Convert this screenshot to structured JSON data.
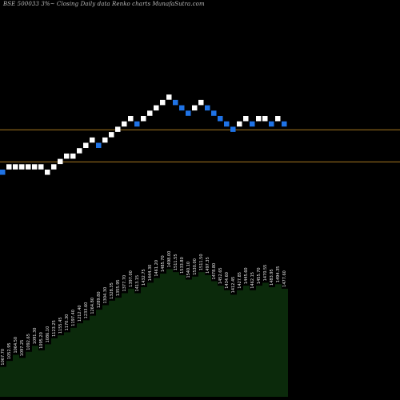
{
  "header": {
    "title": "BSE 500033 3%~  Closing Daily data  Renko  charts MunafaSutra.com"
  },
  "chart_data": [
    {
      "type": "renko",
      "title": "BSE 500033 3%~  Closing Daily data  Renko  charts MunafaSutra.com",
      "box_size_percent": 3,
      "brick_direction": [
        "down",
        "up",
        "up",
        "up",
        "up",
        "up",
        "up",
        "up",
        "up",
        "up",
        "up",
        "up",
        "up",
        "up",
        "up",
        "down",
        "up",
        "up",
        "up",
        "up",
        "up",
        "down",
        "up",
        "up",
        "up",
        "up",
        "up",
        "down",
        "down",
        "down",
        "up",
        "up",
        "down",
        "down",
        "down",
        "down",
        "down",
        "up",
        "up",
        "down",
        "up",
        "up",
        "down",
        "up",
        "down"
      ],
      "brick_level": [
        0,
        1,
        1,
        1,
        1,
        1,
        1,
        0,
        1,
        2,
        3,
        3,
        4,
        5,
        6,
        5,
        6,
        7,
        8,
        9,
        10,
        9,
        10,
        11,
        12,
        13,
        14,
        13,
        12,
        11,
        12,
        13,
        12,
        11,
        10,
        9,
        8,
        9,
        10,
        9,
        10,
        10,
        9,
        10,
        9
      ],
      "colors": {
        "up": "#ffffff",
        "down": "#1f73e6",
        "background": "#000000",
        "horizontal_lines": "#a87820",
        "volume_fill": "#0b2a0b"
      },
      "horizontal_lines_at_level": [
        7.9,
        1.9
      ],
      "grid": false,
      "legend": "none"
    },
    {
      "type": "area",
      "series_label": "volume/labels beneath renko",
      "values": [
        1.0,
        1.8,
        2.6,
        2.2,
        3.0,
        3.8,
        3.2,
        4.0,
        4.8,
        5.2,
        5.6,
        6.2,
        6.8,
        7.2,
        7.8,
        8.6,
        9.2,
        9.8,
        10.2,
        10.8,
        11.4,
        10.8,
        11.6,
        12.2,
        12.8,
        13.4,
        14.0,
        13.6,
        13.2,
        12.6,
        13.0,
        13.6,
        13.2,
        12.4,
        11.8,
        11.2,
        10.6,
        11.2,
        11.8,
        11.2,
        11.8,
        12.2,
        11.6,
        12.0,
        11.4
      ],
      "point_labels": [
        "1067.70",
        "1052.95",
        "1064.50",
        "1097.25",
        "1092.65",
        "1091.30",
        "1095.20",
        "1086.10",
        "1123.25",
        "1155.45",
        "1170.30",
        "1197.40",
        "1212.40",
        "1233.60",
        "1264.80",
        "1289.80",
        "1304.30",
        "1328.35",
        "1355.95",
        "1377.70",
        "1397.00",
        "1413.15",
        "1432.75",
        "1444.30",
        "1461.20",
        "1485.70",
        "1498.00",
        "1511.55",
        "1533.80",
        "1540.10",
        "1530.00",
        "1511.50",
        "1497.35",
        "1478.80",
        "1452.65",
        "1434.60",
        "1412.45",
        "1427.85",
        "1445.60",
        "1462.15",
        "1455.70",
        "1470.55",
        "1483.95",
        "1494.35",
        "1477.60"
      ]
    }
  ]
}
